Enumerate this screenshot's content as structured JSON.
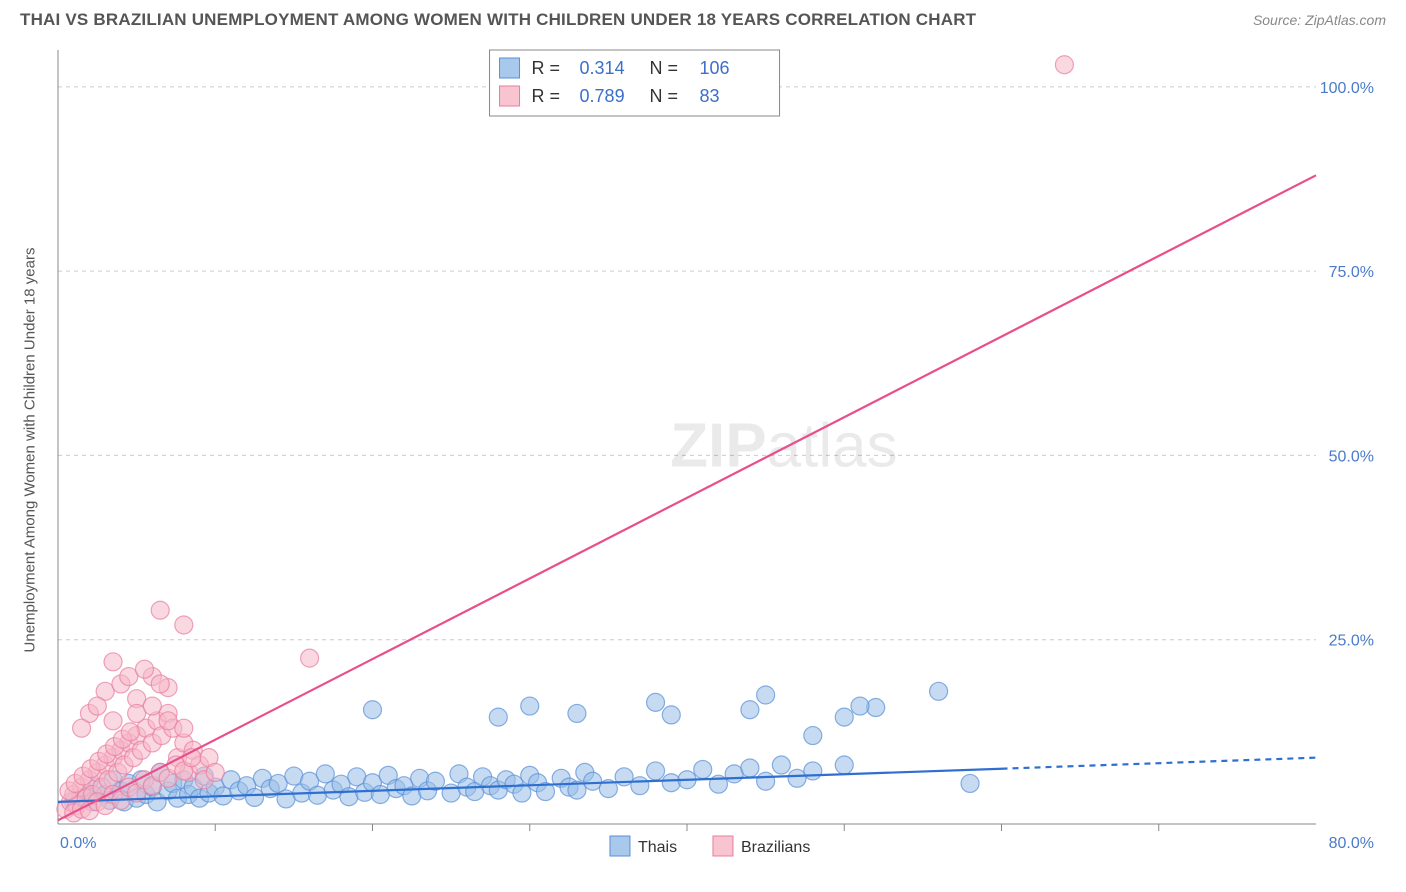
{
  "header": {
    "title": "THAI VS BRAZILIAN UNEMPLOYMENT AMONG WOMEN WITH CHILDREN UNDER 18 YEARS CORRELATION CHART",
    "source": "Source: ZipAtlas.com"
  },
  "ylabel": "Unemployment Among Women with Children Under 18 years",
  "watermark": {
    "a": "ZIP",
    "b": "atlas"
  },
  "chart": {
    "type": "scatter",
    "background_color": "#ffffff",
    "grid_color": "#cccccc",
    "xlim": [
      0,
      80
    ],
    "ylim": [
      0,
      105
    ],
    "xticks": [
      {
        "v": 0,
        "label": "0.0%"
      },
      {
        "v": 80,
        "label": "80.0%"
      }
    ],
    "yticks": [
      {
        "v": 25,
        "label": "25.0%"
      },
      {
        "v": 50,
        "label": "50.0%"
      },
      {
        "v": 75,
        "label": "75.0%"
      },
      {
        "v": 100,
        "label": "100.0%"
      }
    ],
    "x_minor_ticks": [
      10,
      20,
      30,
      40,
      50,
      60,
      70
    ],
    "correlation_box": {
      "rows": [
        {
          "swatch": "blue",
          "R_label": "R =",
          "R": "0.314",
          "N_label": "N =",
          "N": "106"
        },
        {
          "swatch": "pink",
          "R_label": "R =",
          "R": "0.789",
          "N_label": "N =",
          "N": "83"
        }
      ]
    },
    "legend": {
      "items": [
        {
          "swatch": "blue",
          "label": "Thais"
        },
        {
          "swatch": "pink",
          "label": "Brazilians"
        }
      ]
    },
    "series": [
      {
        "name": "Thais",
        "point_color": "#97bde8",
        "point_stroke": "#5a8fd6",
        "point_radius": 9,
        "point_opacity": 0.55,
        "line_color": "#2f6fd0",
        "line_width": 2.2,
        "trend": {
          "x1": 0,
          "y1": 3.0,
          "x2": 60,
          "y2": 7.5,
          "x2_ext": 80,
          "y2_ext": 9.0
        },
        "points": [
          [
            1,
            3
          ],
          [
            1.5,
            3.5
          ],
          [
            2,
            4
          ],
          [
            2.2,
            3
          ],
          [
            2.5,
            5
          ],
          [
            3,
            4
          ],
          [
            3.3,
            3.2
          ],
          [
            3.5,
            6
          ],
          [
            4,
            4.5
          ],
          [
            4.2,
            3
          ],
          [
            4.5,
            5.5
          ],
          [
            5,
            3.5
          ],
          [
            5.3,
            6
          ],
          [
            5.6,
            4
          ],
          [
            6,
            5
          ],
          [
            6.3,
            3
          ],
          [
            6.5,
            7
          ],
          [
            7,
            4.5
          ],
          [
            7.3,
            5.5
          ],
          [
            7.6,
            3.5
          ],
          [
            8,
            6
          ],
          [
            8.3,
            4
          ],
          [
            8.6,
            5
          ],
          [
            9,
            3.5
          ],
          [
            9.3,
            6.5
          ],
          [
            9.6,
            4.2
          ],
          [
            10,
            5
          ],
          [
            10.5,
            3.8
          ],
          [
            11,
            6
          ],
          [
            11.5,
            4.5
          ],
          [
            12,
            5.2
          ],
          [
            12.5,
            3.6
          ],
          [
            13,
            6.2
          ],
          [
            13.5,
            4.8
          ],
          [
            14,
            5.5
          ],
          [
            14.5,
            3.4
          ],
          [
            15,
            6.5
          ],
          [
            15.5,
            4.2
          ],
          [
            16,
            5.8
          ],
          [
            16.5,
            3.9
          ],
          [
            17,
            6.8
          ],
          [
            17.5,
            4.6
          ],
          [
            18,
            5.4
          ],
          [
            18.5,
            3.7
          ],
          [
            19,
            6.4
          ],
          [
            19.5,
            4.3
          ],
          [
            20,
            5.6
          ],
          [
            20.5,
            4
          ],
          [
            21,
            6.6
          ],
          [
            21.5,
            4.8
          ],
          [
            22,
            5.2
          ],
          [
            22.5,
            3.8
          ],
          [
            23,
            6.2
          ],
          [
            23.5,
            4.5
          ],
          [
            24,
            5.8
          ],
          [
            25,
            4.2
          ],
          [
            25.5,
            6.8
          ],
          [
            26,
            5
          ],
          [
            26.5,
            4.4
          ],
          [
            27,
            6.4
          ],
          [
            27.5,
            5.2
          ],
          [
            28,
            4.6
          ],
          [
            28.5,
            6
          ],
          [
            29,
            5.4
          ],
          [
            29.5,
            4.2
          ],
          [
            30,
            6.6
          ],
          [
            30.5,
            5.6
          ],
          [
            31,
            4.4
          ],
          [
            32,
            6.2
          ],
          [
            32.5,
            5
          ],
          [
            33,
            4.6
          ],
          [
            33.5,
            7
          ],
          [
            34,
            5.8
          ],
          [
            35,
            4.8
          ],
          [
            36,
            6.4
          ],
          [
            37,
            5.2
          ],
          [
            38,
            7.2
          ],
          [
            39,
            5.6
          ],
          [
            40,
            6
          ],
          [
            41,
            7.4
          ],
          [
            42,
            5.4
          ],
          [
            43,
            6.8
          ],
          [
            44,
            7.6
          ],
          [
            45,
            5.8
          ],
          [
            46,
            8
          ],
          [
            47,
            6.2
          ],
          [
            48,
            7.2
          ],
          [
            20,
            15.5
          ],
          [
            28,
            14.5
          ],
          [
            30,
            16
          ],
          [
            33,
            15
          ],
          [
            38,
            16.5
          ],
          [
            39,
            14.8
          ],
          [
            44,
            15.5
          ],
          [
            45,
            17.5
          ],
          [
            50,
            14.5
          ],
          [
            52,
            15.8
          ],
          [
            56,
            18
          ],
          [
            58,
            5.5
          ],
          [
            48,
            12
          ],
          [
            51,
            16
          ],
          [
            50,
            8
          ]
        ]
      },
      {
        "name": "Brazilians",
        "point_color": "#f5b8c8",
        "point_stroke": "#e87ca0",
        "point_radius": 9,
        "point_opacity": 0.55,
        "line_color": "#e84f8a",
        "line_width": 2.2,
        "trend": {
          "x1": 0,
          "y1": 0.5,
          "x2": 80,
          "y2": 88
        },
        "points": [
          [
            0.5,
            2
          ],
          [
            0.8,
            3
          ],
          [
            1,
            4
          ],
          [
            1.2,
            2.5
          ],
          [
            1.5,
            5
          ],
          [
            1.8,
            3.5
          ],
          [
            2,
            6
          ],
          [
            2.2,
            4
          ],
          [
            2.5,
            7
          ],
          [
            2.8,
            5
          ],
          [
            3,
            8
          ],
          [
            3.2,
            6
          ],
          [
            3.5,
            9
          ],
          [
            3.8,
            7
          ],
          [
            4,
            10
          ],
          [
            4.2,
            8
          ],
          [
            4.5,
            11
          ],
          [
            4.8,
            9
          ],
          [
            5,
            12
          ],
          [
            5.3,
            10
          ],
          [
            5.6,
            13
          ],
          [
            6,
            11
          ],
          [
            6.3,
            14
          ],
          [
            6.6,
            12
          ],
          [
            7,
            15
          ],
          [
            7.3,
            13
          ],
          [
            7.6,
            9
          ],
          [
            8,
            11
          ],
          [
            8.3,
            7
          ],
          [
            8.6,
            10
          ],
          [
            9,
            8
          ],
          [
            9.3,
            6
          ],
          [
            9.6,
            9
          ],
          [
            10,
            7
          ],
          [
            3,
            18
          ],
          [
            4,
            19
          ],
          [
            5,
            17
          ],
          [
            6,
            20
          ],
          [
            7,
            18.5
          ],
          [
            2,
            15
          ],
          [
            1.5,
            13
          ],
          [
            2.5,
            16
          ],
          [
            3.5,
            14
          ],
          [
            3.5,
            22
          ],
          [
            4.5,
            20
          ],
          [
            5.5,
            21
          ],
          [
            6.5,
            19
          ],
          [
            5,
            15
          ],
          [
            6,
            16
          ],
          [
            7,
            14
          ],
          [
            8,
            13
          ],
          [
            8,
            27
          ],
          [
            6.5,
            29
          ],
          [
            16,
            22.5
          ],
          [
            64,
            103
          ],
          [
            1,
            1.5
          ],
          [
            1.5,
            2
          ],
          [
            2,
            1.8
          ],
          [
            2.5,
            3
          ],
          [
            3,
            2.5
          ],
          [
            3.5,
            4
          ],
          [
            4,
            3.2
          ],
          [
            4.5,
            5
          ],
          [
            5,
            4.2
          ],
          [
            5.5,
            6
          ],
          [
            6,
            5.2
          ],
          [
            6.5,
            7
          ],
          [
            7,
            6.2
          ],
          [
            7.5,
            8
          ],
          [
            8,
            7.2
          ],
          [
            8.5,
            9
          ],
          [
            0.7,
            4.5
          ],
          [
            1.1,
            5.5
          ],
          [
            1.6,
            6.5
          ],
          [
            2.1,
            7.5
          ],
          [
            2.6,
            8.5
          ],
          [
            3.1,
            9.5
          ],
          [
            3.6,
            10.5
          ],
          [
            4.1,
            11.5
          ],
          [
            4.6,
            12.5
          ]
        ]
      }
    ]
  }
}
